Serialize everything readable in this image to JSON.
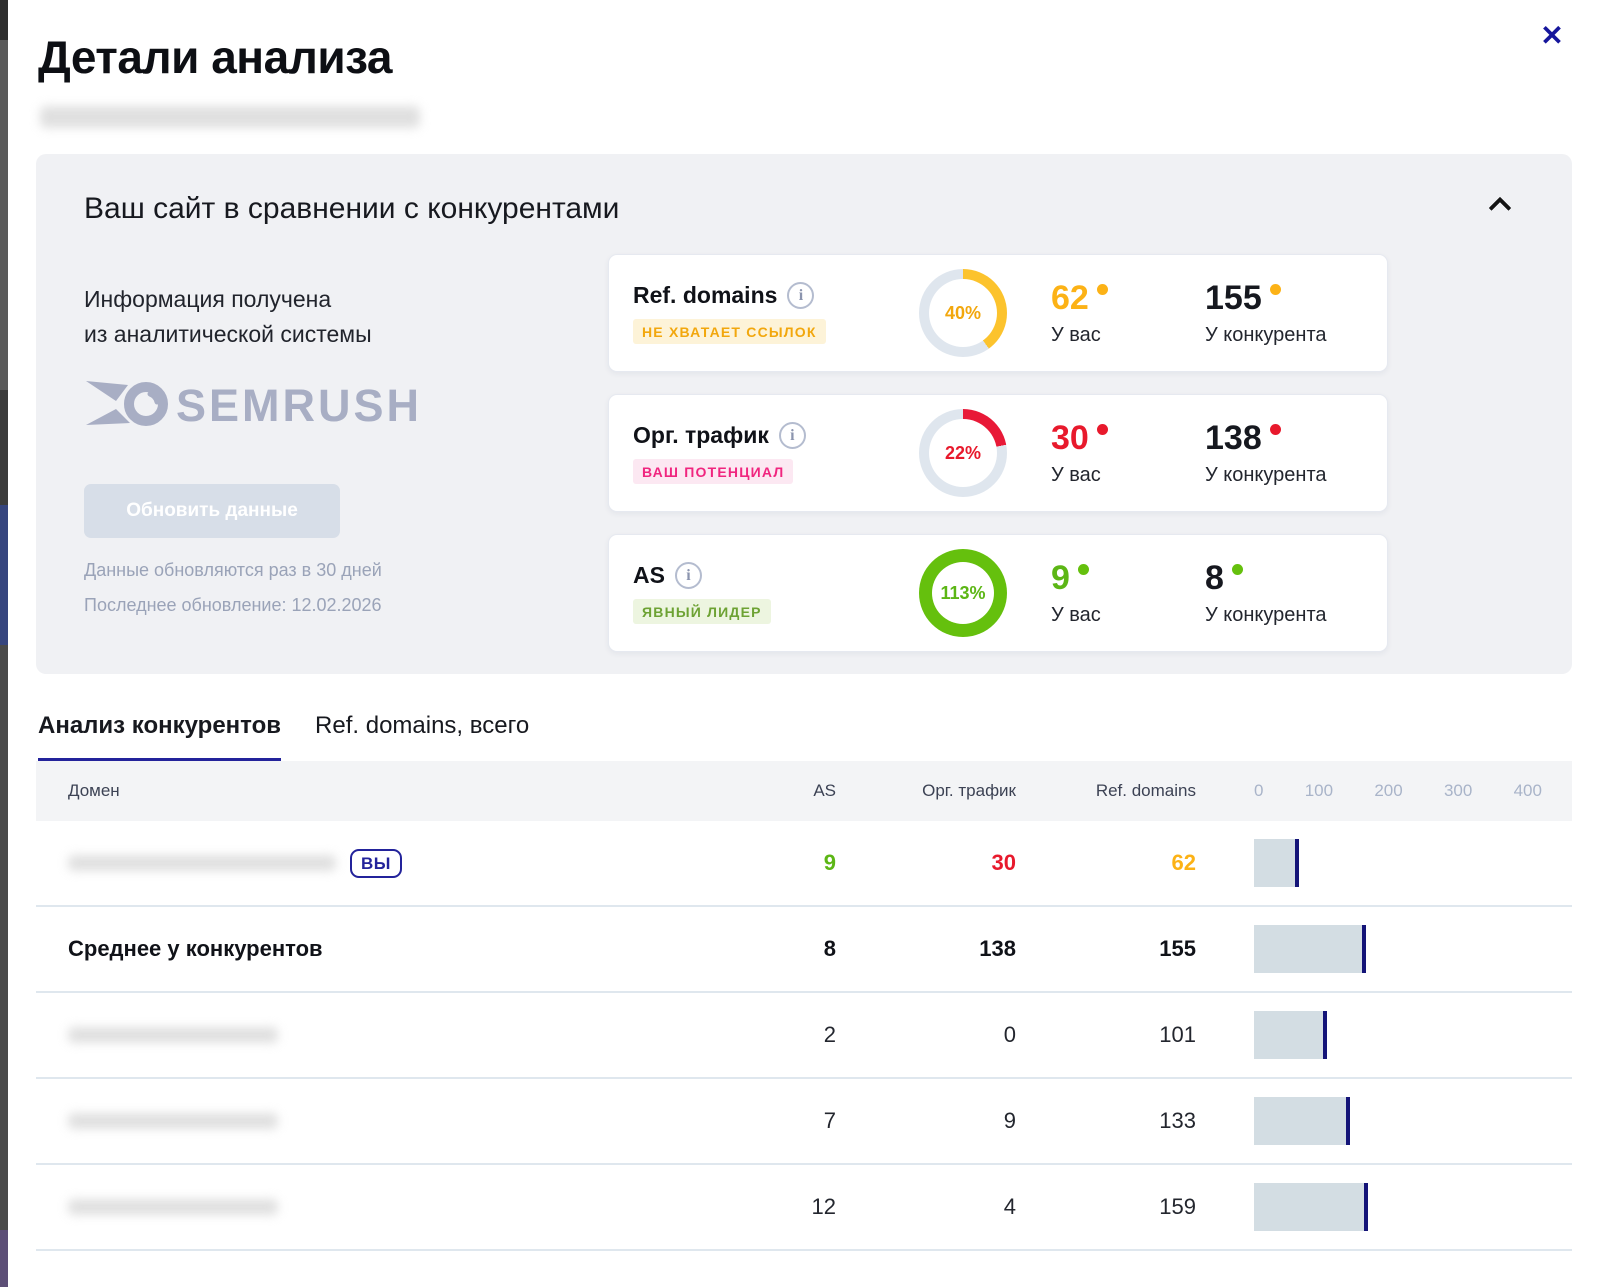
{
  "modal": {
    "title": "Детали анализа",
    "close_label": "✕"
  },
  "comparison": {
    "title": "Ваш сайт в сравнении с конкурентами",
    "source_line1": "Информация получена",
    "source_line2": "из аналитической системы",
    "brand_name": "SEMRUSH",
    "brand_color": "#a8aec4",
    "refresh_button_label": "Обновить данные",
    "update_note": "Данные обновляются раз в 30 дней",
    "last_update_note": "Последнее обновление: 12.02.2026",
    "metrics": [
      {
        "name": "Ref. domains",
        "badge": "НЕ ХВАТАЕТ ССЫЛОК",
        "badge_color": "#f2a70d",
        "badge_bg": "#fdf3d8",
        "percent": 40,
        "percent_label": "40%",
        "percent_text_color": "#f2a70d",
        "ring_color": "#fcc32d",
        "ring_width": 10,
        "you_value": "62",
        "you_value_color": "#fcb216",
        "you_label": "У вас",
        "competitor_value": "155",
        "competitor_label": "У конкурента",
        "dot_color": "#fcb216"
      },
      {
        "name": "Орг. трафик",
        "badge": "ВАШ ПОТЕНЦИАЛ",
        "badge_color": "#f0257f",
        "badge_bg": "#fce8f2",
        "percent": 22,
        "percent_label": "22%",
        "percent_text_color": "#e8192c",
        "ring_color": "#e81937",
        "ring_width": 10,
        "you_value": "30",
        "you_value_color": "#e8192c",
        "you_label": "У вас",
        "competitor_value": "138",
        "competitor_label": "У конкурента",
        "dot_color": "#e8192c"
      },
      {
        "name": "AS",
        "badge": "ЯВНЫЙ ЛИДЕР",
        "badge_color": "#6da233",
        "badge_bg": "#edf5e0",
        "percent": 113,
        "percent_label": "113%",
        "percent_text_color": "#5cb615",
        "ring_color": "#65c00d",
        "ring_width": 13,
        "you_value": "9",
        "you_value_color": "#5cb615",
        "you_label": "У вас",
        "competitor_value": "8",
        "competitor_label": "У конкурента",
        "dot_color": "#65c00d"
      }
    ]
  },
  "tabs": [
    {
      "label": "Анализ конкурентов",
      "active": true
    },
    {
      "label": "Ref. domains, всего",
      "active": false
    }
  ],
  "table": {
    "headers": {
      "domain": "Домен",
      "as": "AS",
      "traffic": "Орг. трафик",
      "ref_domains": "Ref. domains"
    },
    "scale_ticks": [
      "0",
      "100",
      "200",
      "300",
      "400"
    ],
    "scale_max": 400,
    "you_badge_label": "ВЫ",
    "rows": [
      {
        "as": "9",
        "traffic": "30",
        "ref_domains": "62",
        "bar": 62,
        "as_color": "#5cb615",
        "traffic_color": "#e8192c",
        "ref_color": "#fcb216"
      },
      {
        "domain": "Среднее у конкурентов",
        "as": "8",
        "traffic": "138",
        "ref_domains": "155",
        "bar": 155
      },
      {
        "as": "2",
        "traffic": "0",
        "ref_domains": "101",
        "bar": 101
      },
      {
        "as": "7",
        "traffic": "9",
        "ref_domains": "133",
        "bar": 133
      },
      {
        "as": "12",
        "traffic": "4",
        "ref_domains": "159",
        "bar": 159
      }
    ]
  }
}
